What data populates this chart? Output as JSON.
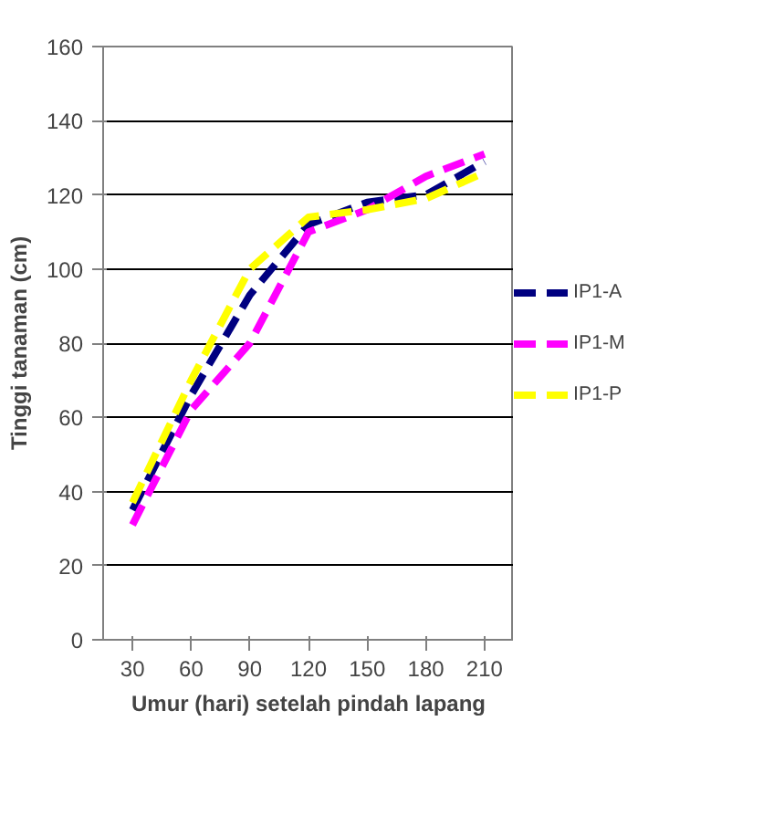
{
  "chart_data": {
    "type": "line",
    "xlabel": "Umur (hari) setelah pindah lapang",
    "ylabel": "Tinggi tanaman (cm)",
    "categories": [
      "30",
      "60",
      "90",
      "120",
      "150",
      "180",
      "210"
    ],
    "series": [
      {
        "name": "IP1-A",
        "color": "#000080",
        "values": [
          35,
          66,
          93,
          112,
          118,
          120,
          129
        ]
      },
      {
        "name": "IP1-M",
        "color": "#ff00ff",
        "values": [
          31,
          62,
          80,
          110,
          116,
          125,
          131
        ]
      },
      {
        "name": "IP1-P",
        "color": "#ffff00",
        "values": [
          37,
          70,
          100,
          114,
          116,
          119,
          126
        ]
      }
    ],
    "ylim": [
      0,
      160
    ],
    "yticks": [
      0,
      20,
      40,
      60,
      80,
      100,
      120,
      140,
      160
    ],
    "grid": "y",
    "legend": "right",
    "line_style": "dashed",
    "marker": "none"
  }
}
